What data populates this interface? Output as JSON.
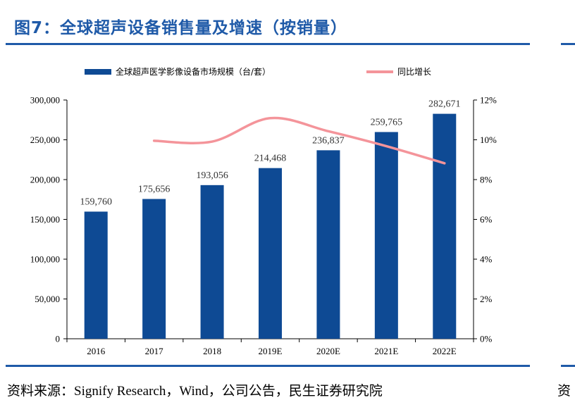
{
  "header": {
    "title": "图7：全球超声设备销售量及增速（按销量）"
  },
  "footer": {
    "source": "资料来源：Signify Research，Wind，公司公告，民生证券研究院",
    "source_right": "资"
  },
  "chart_data": {
    "type": "bar",
    "categories": [
      "2016",
      "2017",
      "2018",
      "2019E",
      "2020E",
      "2021E",
      "2022E"
    ],
    "series": [
      {
        "name": "全球超声医学影像设备市场规模（台/套）",
        "type": "bar",
        "axis": "left",
        "values": [
          159760,
          175656,
          193056,
          214468,
          236837,
          259765,
          282671
        ],
        "labels": [
          "159,760",
          "175,656",
          "193,056",
          "214,468",
          "236,837",
          "259,765",
          "282,671"
        ],
        "color": "#0e4a94"
      },
      {
        "name": "同比增长",
        "type": "line",
        "axis": "right",
        "values": [
          null,
          9.95,
          9.91,
          11.09,
          10.43,
          9.68,
          8.82
        ],
        "color": "#f4949a"
      }
    ],
    "y_left": {
      "ylim": [
        0,
        300000
      ],
      "ticks": [
        0,
        50000,
        100000,
        150000,
        200000,
        250000,
        300000
      ],
      "tick_labels": [
        "0",
        "50,000",
        "100,000",
        "150,000",
        "200,000",
        "250,000",
        "300,000"
      ]
    },
    "y_right": {
      "ylim": [
        0,
        12
      ],
      "ticks": [
        0,
        2,
        4,
        6,
        8,
        10,
        12
      ],
      "tick_labels": [
        "0%",
        "2%",
        "4%",
        "6%",
        "8%",
        "10%",
        "12%"
      ]
    },
    "legend_position": "top",
    "grid": false,
    "title": "",
    "xlabel": "",
    "ylabel": ""
  }
}
